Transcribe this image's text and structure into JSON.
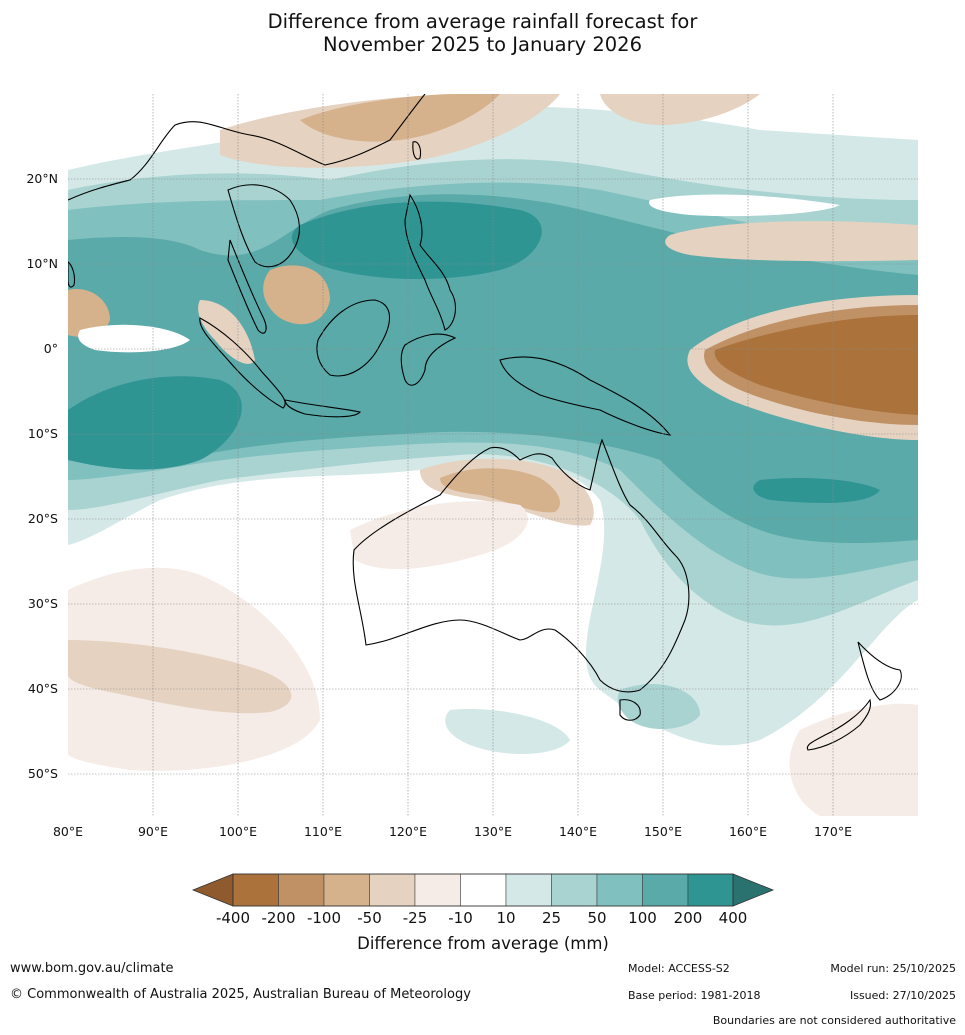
{
  "title": {
    "line1": "Difference from average rainfall forecast for",
    "line2": "November 2025 to January 2026"
  },
  "map": {
    "lon_ticks": [
      "80°E",
      "90°E",
      "100°E",
      "110°E",
      "120°E",
      "130°E",
      "140°E",
      "150°E",
      "160°E",
      "170°E"
    ],
    "lat_ticks": [
      "20°N",
      "10°N",
      "0°",
      "10°S",
      "20°S",
      "30°S",
      "40°S",
      "50°S"
    ]
  },
  "legend": {
    "title": "Difference from average (mm)",
    "labels": [
      "-400",
      "-200",
      "-100",
      "-50",
      "-25",
      "-10",
      "10",
      "25",
      "50",
      "100",
      "200",
      "400"
    ],
    "colors": [
      "#8f5a2e",
      "#ab723c",
      "#c09165",
      "#d5b18c",
      "#e6d2c0",
      "#f5ece7",
      "#ffffff",
      "#d4e9e7",
      "#a8d3d1",
      "#80c0bf",
      "#5aaaa9",
      "#2f9593",
      "#2a7270"
    ]
  },
  "footer": {
    "url": "www.bom.gov.au/climate",
    "copyright": "© Commonwealth of Australia 2025, Australian Bureau of Meteorology",
    "model": "Model: ACCESS-S2",
    "base_period": "Base period: 1981-2018",
    "model_run": "Model run: 25/10/2025",
    "issued": "Issued: 27/10/2025",
    "disclaimer": "Boundaries are not considered authoritative"
  }
}
